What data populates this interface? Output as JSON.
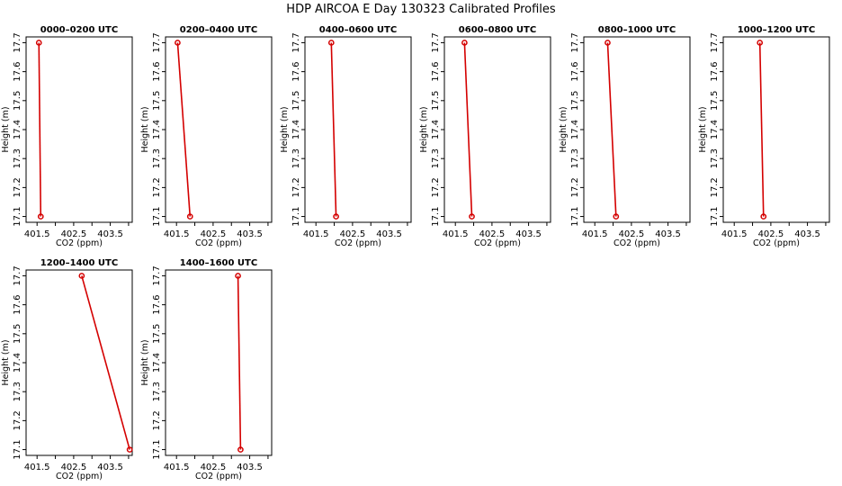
{
  "title": "HDP AIRCOA E  Day 130323  Calibrated Profiles",
  "chart_data": [
    {
      "type": "line",
      "title": "0000–0200 UTC",
      "xlabel": "CO2 (ppm)",
      "ylabel": "Height (m)",
      "xlim": [
        401.2,
        404.1
      ],
      "ylim": [
        17.08,
        17.72
      ],
      "xticks": [
        "401.5",
        "402.5",
        "403.5"
      ],
      "yticks": [
        "17.1",
        "17.2",
        "17.3",
        "17.4",
        "17.5",
        "17.6",
        "17.7"
      ],
      "points": [
        {
          "x": 401.55,
          "y": 17.7
        },
        {
          "x": 401.6,
          "y": 17.1
        }
      ]
    },
    {
      "type": "line",
      "title": "0200–0400 UTC",
      "xlabel": "CO2 (ppm)",
      "ylabel": "Height (m)",
      "xlim": [
        401.2,
        404.1
      ],
      "ylim": [
        17.08,
        17.72
      ],
      "xticks": [
        "401.5",
        "402.5",
        "403.5"
      ],
      "yticks": [
        "17.1",
        "17.2",
        "17.3",
        "17.4",
        "17.5",
        "17.6",
        "17.7"
      ],
      "points": [
        {
          "x": 401.53,
          "y": 17.7
        },
        {
          "x": 401.87,
          "y": 17.1
        }
      ]
    },
    {
      "type": "line",
      "title": "0400–0600 UTC",
      "xlabel": "CO2 (ppm)",
      "ylabel": "Height (m)",
      "xlim": [
        401.2,
        404.1
      ],
      "ylim": [
        17.08,
        17.72
      ],
      "xticks": [
        "401.5",
        "402.5",
        "403.5"
      ],
      "yticks": [
        "17.1",
        "17.2",
        "17.3",
        "17.4",
        "17.5",
        "17.6",
        "17.7"
      ],
      "points": [
        {
          "x": 401.92,
          "y": 17.7
        },
        {
          "x": 402.05,
          "y": 17.1
        }
      ]
    },
    {
      "type": "line",
      "title": "0600–0800 UTC",
      "xlabel": "CO2 (ppm)",
      "ylabel": "Height (m)",
      "xlim": [
        401.2,
        404.1
      ],
      "ylim": [
        17.08,
        17.72
      ],
      "xticks": [
        "401.5",
        "402.5",
        "403.5"
      ],
      "yticks": [
        "17.1",
        "17.2",
        "17.3",
        "17.4",
        "17.5",
        "17.6",
        "17.7"
      ],
      "points": [
        {
          "x": 401.75,
          "y": 17.7
        },
        {
          "x": 401.95,
          "y": 17.1
        }
      ]
    },
    {
      "type": "line",
      "title": "0800–1000 UTC",
      "xlabel": "CO2 (ppm)",
      "ylabel": "Height (m)",
      "xlim": [
        401.2,
        404.1
      ],
      "ylim": [
        17.08,
        17.72
      ],
      "xticks": [
        "401.5",
        "402.5",
        "403.5"
      ],
      "yticks": [
        "17.1",
        "17.2",
        "17.3",
        "17.4",
        "17.5",
        "17.6",
        "17.7"
      ],
      "points": [
        {
          "x": 401.85,
          "y": 17.7
        },
        {
          "x": 402.08,
          "y": 17.1
        }
      ]
    },
    {
      "type": "line",
      "title": "1000–1200 UTC",
      "xlabel": "CO2 (ppm)",
      "ylabel": "Height (m)",
      "xlim": [
        401.2,
        404.1
      ],
      "ylim": [
        17.08,
        17.72
      ],
      "xticks": [
        "401.5",
        "402.5",
        "403.5"
      ],
      "yticks": [
        "17.1",
        "17.2",
        "17.3",
        "17.4",
        "17.5",
        "17.6",
        "17.7"
      ],
      "points": [
        {
          "x": 402.2,
          "y": 17.7
        },
        {
          "x": 402.3,
          "y": 17.1
        }
      ]
    },
    {
      "type": "line",
      "title": "1200–1400 UTC",
      "xlabel": "CO2 (ppm)",
      "ylabel": "Height (m)",
      "xlim": [
        401.2,
        404.1
      ],
      "ylim": [
        17.08,
        17.72
      ],
      "xticks": [
        "401.5",
        "402.5",
        "403.5"
      ],
      "yticks": [
        "17.1",
        "17.2",
        "17.3",
        "17.4",
        "17.5",
        "17.6",
        "17.7"
      ],
      "points": [
        {
          "x": 402.72,
          "y": 17.7
        },
        {
          "x": 404.03,
          "y": 17.1
        }
      ]
    },
    {
      "type": "line",
      "title": "1400–1600 UTC",
      "xlabel": "CO2 (ppm)",
      "ylabel": "Height (m)",
      "xlim": [
        401.2,
        404.1
      ],
      "ylim": [
        17.08,
        17.72
      ],
      "xticks": [
        "401.5",
        "402.5",
        "403.5"
      ],
      "yticks": [
        "17.1",
        "17.2",
        "17.3",
        "17.4",
        "17.5",
        "17.6",
        "17.7"
      ],
      "points": [
        {
          "x": 403.18,
          "y": 17.7
        },
        {
          "x": 403.25,
          "y": 17.1
        }
      ]
    }
  ],
  "colors": {
    "series": "#d40000",
    "axis": "#000000"
  }
}
